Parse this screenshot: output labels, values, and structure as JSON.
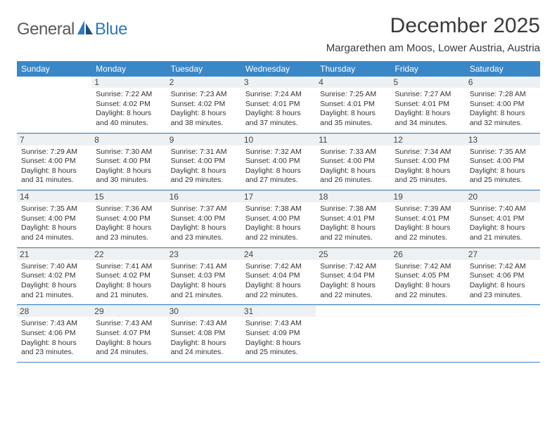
{
  "logo": {
    "general": "General",
    "blue": "Blue"
  },
  "title": "December 2025",
  "location": "Margarethen am Moos, Lower Austria, Austria",
  "header_bg": "#3a87c8",
  "daynum_bg": "#eef1f3",
  "divider_color": "#3a87c8",
  "text_color": "#333333",
  "day_names": [
    "Sunday",
    "Monday",
    "Tuesday",
    "Wednesday",
    "Thursday",
    "Friday",
    "Saturday"
  ],
  "weeks": [
    [
      {
        "n": "",
        "sunrise": "",
        "sunset": "",
        "daylight": ""
      },
      {
        "n": "1",
        "sunrise": "Sunrise: 7:22 AM",
        "sunset": "Sunset: 4:02 PM",
        "daylight": "Daylight: 8 hours and 40 minutes."
      },
      {
        "n": "2",
        "sunrise": "Sunrise: 7:23 AM",
        "sunset": "Sunset: 4:02 PM",
        "daylight": "Daylight: 8 hours and 38 minutes."
      },
      {
        "n": "3",
        "sunrise": "Sunrise: 7:24 AM",
        "sunset": "Sunset: 4:01 PM",
        "daylight": "Daylight: 8 hours and 37 minutes."
      },
      {
        "n": "4",
        "sunrise": "Sunrise: 7:25 AM",
        "sunset": "Sunset: 4:01 PM",
        "daylight": "Daylight: 8 hours and 35 minutes."
      },
      {
        "n": "5",
        "sunrise": "Sunrise: 7:27 AM",
        "sunset": "Sunset: 4:01 PM",
        "daylight": "Daylight: 8 hours and 34 minutes."
      },
      {
        "n": "6",
        "sunrise": "Sunrise: 7:28 AM",
        "sunset": "Sunset: 4:00 PM",
        "daylight": "Daylight: 8 hours and 32 minutes."
      }
    ],
    [
      {
        "n": "7",
        "sunrise": "Sunrise: 7:29 AM",
        "sunset": "Sunset: 4:00 PM",
        "daylight": "Daylight: 8 hours and 31 minutes."
      },
      {
        "n": "8",
        "sunrise": "Sunrise: 7:30 AM",
        "sunset": "Sunset: 4:00 PM",
        "daylight": "Daylight: 8 hours and 30 minutes."
      },
      {
        "n": "9",
        "sunrise": "Sunrise: 7:31 AM",
        "sunset": "Sunset: 4:00 PM",
        "daylight": "Daylight: 8 hours and 29 minutes."
      },
      {
        "n": "10",
        "sunrise": "Sunrise: 7:32 AM",
        "sunset": "Sunset: 4:00 PM",
        "daylight": "Daylight: 8 hours and 27 minutes."
      },
      {
        "n": "11",
        "sunrise": "Sunrise: 7:33 AM",
        "sunset": "Sunset: 4:00 PM",
        "daylight": "Daylight: 8 hours and 26 minutes."
      },
      {
        "n": "12",
        "sunrise": "Sunrise: 7:34 AM",
        "sunset": "Sunset: 4:00 PM",
        "daylight": "Daylight: 8 hours and 25 minutes."
      },
      {
        "n": "13",
        "sunrise": "Sunrise: 7:35 AM",
        "sunset": "Sunset: 4:00 PM",
        "daylight": "Daylight: 8 hours and 25 minutes."
      }
    ],
    [
      {
        "n": "14",
        "sunrise": "Sunrise: 7:35 AM",
        "sunset": "Sunset: 4:00 PM",
        "daylight": "Daylight: 8 hours and 24 minutes."
      },
      {
        "n": "15",
        "sunrise": "Sunrise: 7:36 AM",
        "sunset": "Sunset: 4:00 PM",
        "daylight": "Daylight: 8 hours and 23 minutes."
      },
      {
        "n": "16",
        "sunrise": "Sunrise: 7:37 AM",
        "sunset": "Sunset: 4:00 PM",
        "daylight": "Daylight: 8 hours and 23 minutes."
      },
      {
        "n": "17",
        "sunrise": "Sunrise: 7:38 AM",
        "sunset": "Sunset: 4:00 PM",
        "daylight": "Daylight: 8 hours and 22 minutes."
      },
      {
        "n": "18",
        "sunrise": "Sunrise: 7:38 AM",
        "sunset": "Sunset: 4:01 PM",
        "daylight": "Daylight: 8 hours and 22 minutes."
      },
      {
        "n": "19",
        "sunrise": "Sunrise: 7:39 AM",
        "sunset": "Sunset: 4:01 PM",
        "daylight": "Daylight: 8 hours and 22 minutes."
      },
      {
        "n": "20",
        "sunrise": "Sunrise: 7:40 AM",
        "sunset": "Sunset: 4:01 PM",
        "daylight": "Daylight: 8 hours and 21 minutes."
      }
    ],
    [
      {
        "n": "21",
        "sunrise": "Sunrise: 7:40 AM",
        "sunset": "Sunset: 4:02 PM",
        "daylight": "Daylight: 8 hours and 21 minutes."
      },
      {
        "n": "22",
        "sunrise": "Sunrise: 7:41 AM",
        "sunset": "Sunset: 4:02 PM",
        "daylight": "Daylight: 8 hours and 21 minutes."
      },
      {
        "n": "23",
        "sunrise": "Sunrise: 7:41 AM",
        "sunset": "Sunset: 4:03 PM",
        "daylight": "Daylight: 8 hours and 21 minutes."
      },
      {
        "n": "24",
        "sunrise": "Sunrise: 7:42 AM",
        "sunset": "Sunset: 4:04 PM",
        "daylight": "Daylight: 8 hours and 22 minutes."
      },
      {
        "n": "25",
        "sunrise": "Sunrise: 7:42 AM",
        "sunset": "Sunset: 4:04 PM",
        "daylight": "Daylight: 8 hours and 22 minutes."
      },
      {
        "n": "26",
        "sunrise": "Sunrise: 7:42 AM",
        "sunset": "Sunset: 4:05 PM",
        "daylight": "Daylight: 8 hours and 22 minutes."
      },
      {
        "n": "27",
        "sunrise": "Sunrise: 7:42 AM",
        "sunset": "Sunset: 4:06 PM",
        "daylight": "Daylight: 8 hours and 23 minutes."
      }
    ],
    [
      {
        "n": "28",
        "sunrise": "Sunrise: 7:43 AM",
        "sunset": "Sunset: 4:06 PM",
        "daylight": "Daylight: 8 hours and 23 minutes."
      },
      {
        "n": "29",
        "sunrise": "Sunrise: 7:43 AM",
        "sunset": "Sunset: 4:07 PM",
        "daylight": "Daylight: 8 hours and 24 minutes."
      },
      {
        "n": "30",
        "sunrise": "Sunrise: 7:43 AM",
        "sunset": "Sunset: 4:08 PM",
        "daylight": "Daylight: 8 hours and 24 minutes."
      },
      {
        "n": "31",
        "sunrise": "Sunrise: 7:43 AM",
        "sunset": "Sunset: 4:09 PM",
        "daylight": "Daylight: 8 hours and 25 minutes."
      },
      {
        "n": "",
        "sunrise": "",
        "sunset": "",
        "daylight": ""
      },
      {
        "n": "",
        "sunrise": "",
        "sunset": "",
        "daylight": ""
      },
      {
        "n": "",
        "sunrise": "",
        "sunset": "",
        "daylight": ""
      }
    ]
  ]
}
